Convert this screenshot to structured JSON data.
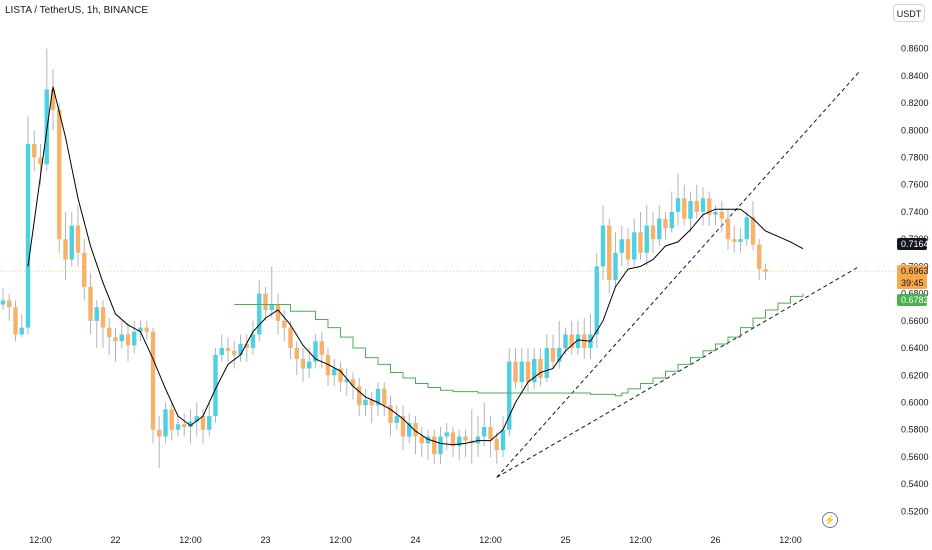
{
  "header": {
    "title": "LISTA / TetherUS, 1h, BINANCE",
    "currency": "USDT"
  },
  "badges": {
    "last_price": "0.7164",
    "current_price": "0.6963",
    "countdown": "39:45",
    "ema_value": "0.6782"
  },
  "icons": {
    "alert": "lightning-icon"
  },
  "colors": {
    "up": "#4dd0e1",
    "down": "#f7b267",
    "ma": "#000000",
    "ema": "#4caf50",
    "trend": "#131722"
  },
  "chart_data": {
    "type": "candlestick",
    "title": "LISTA / TetherUS, 1h, BINANCE",
    "ylim": [
      0.51,
      0.87
    ],
    "y_ticks": [
      "0.5200",
      "0.5400",
      "0.5600",
      "0.5800",
      "0.6000",
      "0.6200",
      "0.6400",
      "0.6600",
      "0.6800",
      "0.7000",
      "0.7200",
      "0.7400",
      "0.7600",
      "0.7800",
      "0.8000",
      "0.8200",
      "0.8400",
      "0.8600"
    ],
    "x_ticks": [
      {
        "label": "12:00",
        "bar": 6
      },
      {
        "label": "22",
        "bar": 18
      },
      {
        "label": "12:00",
        "bar": 30
      },
      {
        "label": "23",
        "bar": 42
      },
      {
        "label": "12:00",
        "bar": 54
      },
      {
        "label": "24",
        "bar": 66
      },
      {
        "label": "12:00",
        "bar": 78
      },
      {
        "label": "25",
        "bar": 90
      },
      {
        "label": "12:00",
        "bar": 102
      },
      {
        "label": "26",
        "bar": 114
      },
      {
        "label": "12:00",
        "bar": 126
      }
    ],
    "candles": [
      [
        0.672,
        0.675,
        0.684,
        0.668
      ],
      [
        0.675,
        0.67,
        0.68,
        0.66
      ],
      [
        0.67,
        0.65,
        0.675,
        0.645
      ],
      [
        0.65,
        0.655,
        0.665,
        0.648
      ],
      [
        0.655,
        0.79,
        0.81,
        0.65
      ],
      [
        0.79,
        0.78,
        0.8,
        0.77
      ],
      [
        0.78,
        0.775,
        0.79,
        0.76
      ],
      [
        0.775,
        0.83,
        0.86,
        0.77
      ],
      [
        0.83,
        0.815,
        0.845,
        0.8
      ],
      [
        0.815,
        0.72,
        0.82,
        0.71
      ],
      [
        0.72,
        0.705,
        0.74,
        0.69
      ],
      [
        0.705,
        0.73,
        0.74,
        0.7
      ],
      [
        0.73,
        0.71,
        0.745,
        0.7
      ],
      [
        0.71,
        0.685,
        0.72,
        0.675
      ],
      [
        0.685,
        0.66,
        0.695,
        0.65
      ],
      [
        0.66,
        0.67,
        0.675,
        0.64
      ],
      [
        0.67,
        0.655,
        0.675,
        0.64
      ],
      [
        0.655,
        0.648,
        0.662,
        0.635
      ],
      [
        0.648,
        0.645,
        0.655,
        0.63
      ],
      [
        0.645,
        0.65,
        0.66,
        0.64
      ],
      [
        0.65,
        0.642,
        0.658,
        0.63
      ],
      [
        0.642,
        0.652,
        0.66,
        0.636
      ],
      [
        0.652,
        0.655,
        0.66,
        0.645
      ],
      [
        0.655,
        0.652,
        0.66,
        0.646
      ],
      [
        0.652,
        0.58,
        0.655,
        0.57
      ],
      [
        0.58,
        0.575,
        0.59,
        0.552
      ],
      [
        0.575,
        0.595,
        0.6,
        0.57
      ],
      [
        0.595,
        0.58,
        0.6,
        0.572
      ],
      [
        0.58,
        0.584,
        0.59,
        0.575
      ],
      [
        0.584,
        0.582,
        0.592,
        0.575
      ],
      [
        0.582,
        0.586,
        0.595,
        0.57
      ],
      [
        0.586,
        0.59,
        0.6,
        0.575
      ],
      [
        0.59,
        0.58,
        0.595,
        0.57
      ],
      [
        0.58,
        0.59,
        0.6,
        0.575
      ],
      [
        0.59,
        0.635,
        0.64,
        0.585
      ],
      [
        0.635,
        0.64,
        0.65,
        0.63
      ],
      [
        0.64,
        0.638,
        0.648,
        0.63
      ],
      [
        0.638,
        0.635,
        0.645,
        0.625
      ],
      [
        0.635,
        0.643,
        0.65,
        0.63
      ],
      [
        0.643,
        0.64,
        0.65,
        0.63
      ],
      [
        0.64,
        0.65,
        0.66,
        0.635
      ],
      [
        0.65,
        0.68,
        0.69,
        0.645
      ],
      [
        0.68,
        0.668,
        0.685,
        0.66
      ],
      [
        0.668,
        0.672,
        0.7,
        0.662
      ],
      [
        0.672,
        0.66,
        0.68,
        0.65
      ],
      [
        0.66,
        0.655,
        0.668,
        0.645
      ],
      [
        0.655,
        0.64,
        0.66,
        0.632
      ],
      [
        0.64,
        0.632,
        0.645,
        0.62
      ],
      [
        0.632,
        0.625,
        0.64,
        0.615
      ],
      [
        0.625,
        0.63,
        0.64,
        0.618
      ],
      [
        0.63,
        0.645,
        0.65,
        0.625
      ],
      [
        0.645,
        0.635,
        0.652,
        0.625
      ],
      [
        0.635,
        0.62,
        0.64,
        0.612
      ],
      [
        0.62,
        0.625,
        0.632,
        0.612
      ],
      [
        0.625,
        0.615,
        0.63,
        0.608
      ],
      [
        0.615,
        0.617,
        0.625,
        0.605
      ],
      [
        0.617,
        0.612,
        0.622,
        0.602
      ],
      [
        0.612,
        0.598,
        0.618,
        0.59
      ],
      [
        0.598,
        0.602,
        0.61,
        0.59
      ],
      [
        0.602,
        0.598,
        0.608,
        0.585
      ],
      [
        0.598,
        0.61,
        0.615,
        0.59
      ],
      [
        0.61,
        0.598,
        0.615,
        0.59
      ],
      [
        0.598,
        0.585,
        0.605,
        0.575
      ],
      [
        0.585,
        0.59,
        0.598,
        0.58
      ],
      [
        0.59,
        0.575,
        0.598,
        0.565
      ],
      [
        0.575,
        0.585,
        0.592,
        0.57
      ],
      [
        0.585,
        0.575,
        0.59,
        0.562
      ],
      [
        0.575,
        0.57,
        0.582,
        0.56
      ],
      [
        0.57,
        0.575,
        0.58,
        0.558
      ],
      [
        0.575,
        0.562,
        0.58,
        0.555
      ],
      [
        0.562,
        0.575,
        0.582,
        0.555
      ],
      [
        0.575,
        0.578,
        0.585,
        0.565
      ],
      [
        0.578,
        0.568,
        0.582,
        0.56
      ],
      [
        0.568,
        0.575,
        0.58,
        0.558
      ],
      [
        0.575,
        0.572,
        0.58,
        0.56
      ],
      [
        0.572,
        0.57,
        0.595,
        0.555
      ],
      [
        0.57,
        0.575,
        0.59,
        0.56
      ],
      [
        0.575,
        0.582,
        0.6,
        0.568
      ],
      [
        0.582,
        0.573,
        0.59,
        0.56
      ],
      [
        0.573,
        0.565,
        0.578,
        0.555
      ],
      [
        0.565,
        0.58,
        0.59,
        0.56
      ],
      [
        0.58,
        0.63,
        0.64,
        0.575
      ],
      [
        0.63,
        0.615,
        0.64,
        0.61
      ],
      [
        0.615,
        0.63,
        0.64,
        0.61
      ],
      [
        0.63,
        0.615,
        0.64,
        0.608
      ],
      [
        0.615,
        0.632,
        0.64,
        0.61
      ],
      [
        0.632,
        0.618,
        0.64,
        0.612
      ],
      [
        0.618,
        0.64,
        0.65,
        0.615
      ],
      [
        0.64,
        0.63,
        0.65,
        0.625
      ],
      [
        0.63,
        0.64,
        0.66,
        0.625
      ],
      [
        0.64,
        0.65,
        0.655,
        0.635
      ],
      [
        0.65,
        0.64,
        0.66,
        0.635
      ],
      [
        0.64,
        0.65,
        0.66,
        0.635
      ],
      [
        0.65,
        0.64,
        0.662,
        0.632
      ],
      [
        0.64,
        0.65,
        0.665,
        0.632
      ],
      [
        0.65,
        0.7,
        0.71,
        0.64
      ],
      [
        0.7,
        0.73,
        0.745,
        0.69
      ],
      [
        0.73,
        0.69,
        0.735,
        0.68
      ],
      [
        0.69,
        0.71,
        0.725,
        0.685
      ],
      [
        0.71,
        0.72,
        0.73,
        0.7
      ],
      [
        0.72,
        0.705,
        0.728,
        0.7
      ],
      [
        0.705,
        0.725,
        0.735,
        0.7
      ],
      [
        0.725,
        0.71,
        0.74,
        0.705
      ],
      [
        0.71,
        0.73,
        0.745,
        0.7
      ],
      [
        0.73,
        0.72,
        0.74,
        0.71
      ],
      [
        0.72,
        0.735,
        0.745,
        0.715
      ],
      [
        0.735,
        0.728,
        0.74,
        0.72
      ],
      [
        0.728,
        0.74,
        0.755,
        0.725
      ],
      [
        0.74,
        0.75,
        0.768,
        0.73
      ],
      [
        0.75,
        0.735,
        0.76,
        0.73
      ],
      [
        0.735,
        0.748,
        0.755,
        0.725
      ],
      [
        0.748,
        0.74,
        0.76,
        0.735
      ],
      [
        0.74,
        0.75,
        0.758,
        0.73
      ],
      [
        0.75,
        0.738,
        0.755,
        0.73
      ],
      [
        0.738,
        0.74,
        0.745,
        0.73
      ],
      [
        0.74,
        0.735,
        0.748,
        0.725
      ],
      [
        0.735,
        0.72,
        0.742,
        0.712
      ],
      [
        0.72,
        0.718,
        0.73,
        0.71
      ],
      [
        0.718,
        0.72,
        0.728,
        0.71
      ],
      [
        0.72,
        0.736,
        0.74,
        0.715
      ],
      [
        0.736,
        0.716,
        0.748,
        0.712
      ],
      [
        0.716,
        0.698,
        0.72,
        0.69
      ],
      [
        0.698,
        0.696,
        0.702,
        0.69
      ]
    ],
    "ma_line": [
      [
        4,
        0.7
      ],
      [
        7,
        0.8
      ],
      [
        8,
        0.832
      ],
      [
        10,
        0.795
      ],
      [
        12,
        0.75
      ],
      [
        14,
        0.715
      ],
      [
        16,
        0.688
      ],
      [
        18,
        0.665
      ],
      [
        20,
        0.657
      ],
      [
        22,
        0.652
      ],
      [
        24,
        0.632
      ],
      [
        26,
        0.61
      ],
      [
        28,
        0.59
      ],
      [
        30,
        0.583
      ],
      [
        32,
        0.59
      ],
      [
        34,
        0.61
      ],
      [
        36,
        0.628
      ],
      [
        38,
        0.635
      ],
      [
        40,
        0.652
      ],
      [
        42,
        0.662
      ],
      [
        44,
        0.668
      ],
      [
        46,
        0.657
      ],
      [
        48,
        0.642
      ],
      [
        50,
        0.632
      ],
      [
        52,
        0.628
      ],
      [
        54,
        0.623
      ],
      [
        56,
        0.612
      ],
      [
        58,
        0.604
      ],
      [
        60,
        0.6
      ],
      [
        62,
        0.595
      ],
      [
        64,
        0.588
      ],
      [
        66,
        0.579
      ],
      [
        68,
        0.573
      ],
      [
        70,
        0.57
      ],
      [
        72,
        0.569
      ],
      [
        74,
        0.57
      ],
      [
        76,
        0.572
      ],
      [
        78,
        0.572
      ],
      [
        80,
        0.58
      ],
      [
        82,
        0.6
      ],
      [
        84,
        0.615
      ],
      [
        86,
        0.622
      ],
      [
        88,
        0.625
      ],
      [
        90,
        0.638
      ],
      [
        92,
        0.646
      ],
      [
        94,
        0.645
      ],
      [
        96,
        0.66
      ],
      [
        98,
        0.685
      ],
      [
        100,
        0.698
      ],
      [
        102,
        0.7
      ],
      [
        104,
        0.705
      ],
      [
        106,
        0.715
      ],
      [
        108,
        0.718
      ],
      [
        110,
        0.727
      ],
      [
        112,
        0.738
      ],
      [
        114,
        0.742
      ],
      [
        116,
        0.742
      ],
      [
        118,
        0.742
      ],
      [
        120,
        0.735
      ],
      [
        122,
        0.726
      ],
      [
        124,
        0.722
      ],
      [
        126,
        0.718
      ],
      [
        128,
        0.713
      ]
    ],
    "ema_steps": [
      [
        37,
        0.672
      ],
      [
        46,
        0.667
      ],
      [
        50,
        0.661
      ],
      [
        52,
        0.655
      ],
      [
        54,
        0.648
      ],
      [
        56,
        0.64
      ],
      [
        58,
        0.633
      ],
      [
        60,
        0.628
      ],
      [
        62,
        0.622
      ],
      [
        64,
        0.618
      ],
      [
        66,
        0.614
      ],
      [
        68,
        0.611
      ],
      [
        70,
        0.609
      ],
      [
        72,
        0.608
      ],
      [
        76,
        0.607
      ],
      [
        82,
        0.607
      ],
      [
        92,
        0.607
      ],
      [
        94,
        0.606
      ],
      [
        98,
        0.605
      ],
      [
        99,
        0.607
      ],
      [
        100,
        0.61
      ],
      [
        102,
        0.614
      ],
      [
        104,
        0.618
      ],
      [
        106,
        0.623
      ],
      [
        108,
        0.628
      ],
      [
        110,
        0.633
      ],
      [
        112,
        0.638
      ],
      [
        114,
        0.643
      ],
      [
        116,
        0.648
      ],
      [
        118,
        0.655
      ],
      [
        120,
        0.662
      ],
      [
        122,
        0.668
      ],
      [
        124,
        0.673
      ],
      [
        126,
        0.678
      ],
      [
        128,
        0.68
      ]
    ],
    "trendlines": [
      {
        "from": [
          79,
          0.545
        ],
        "to": [
          137,
          0.843
        ]
      },
      {
        "from": [
          79,
          0.545
        ],
        "to": [
          137,
          0.7
        ]
      }
    ],
    "current_price": 0.6963,
    "last_price": 0.7164,
    "ema_value": 0.6782
  }
}
